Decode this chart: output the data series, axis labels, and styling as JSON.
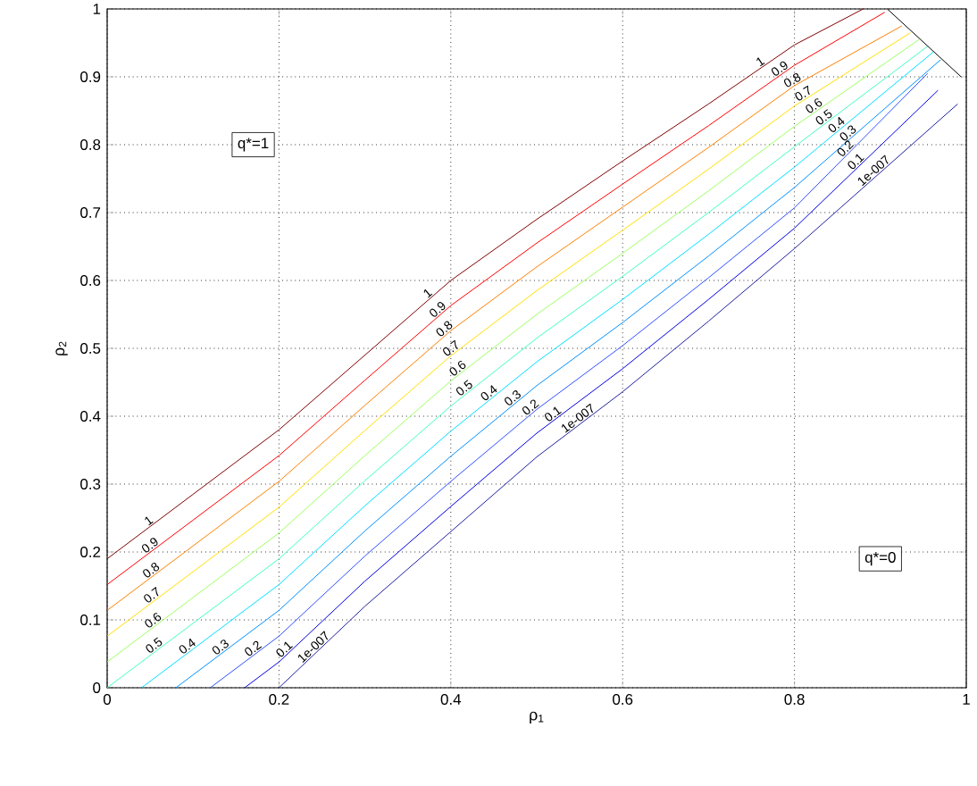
{
  "chart_data": {
    "type": "line",
    "xlabel": "ρ$_{1}$",
    "ylabel": "ρ$_{2}$",
    "xlim": [
      0,
      1
    ],
    "ylim": [
      0,
      1
    ],
    "xticks": [
      0,
      0.2,
      0.4,
      0.6,
      0.8,
      1
    ],
    "yticks": [
      0,
      0.1,
      0.2,
      0.3,
      0.4,
      0.5,
      0.6,
      0.7,
      0.8,
      0.9,
      1
    ],
    "grid": true,
    "marker": "none",
    "line_style": "solid",
    "annotations": [
      {
        "text": "q*=1",
        "x": 0.17,
        "y": 0.8
      },
      {
        "text": "q*=0",
        "x": 0.9,
        "y": 0.19
      }
    ],
    "series": [
      {
        "name": "1",
        "color": "#800000",
        "x": [
          0,
          0.1,
          0.2,
          0.3,
          0.4,
          0.5,
          0.6,
          0.7,
          0.8,
          0.88
        ],
        "values": [
          0.19,
          0.285,
          0.38,
          0.49,
          0.6,
          0.69,
          0.776,
          0.86,
          0.947,
          1.0
        ]
      },
      {
        "name": "0.9",
        "color": "#ff0000",
        "x": [
          0,
          0.1,
          0.2,
          0.3,
          0.4,
          0.5,
          0.6,
          0.7,
          0.8,
          0.905
        ],
        "values": [
          0.152,
          0.247,
          0.342,
          0.453,
          0.563,
          0.655,
          0.742,
          0.828,
          0.917,
          0.995
        ]
      },
      {
        "name": "0.8",
        "color": "#ff7f00",
        "x": [
          0,
          0.1,
          0.2,
          0.3,
          0.4,
          0.5,
          0.6,
          0.7,
          0.8,
          0.925
        ],
        "values": [
          0.114,
          0.209,
          0.304,
          0.416,
          0.526,
          0.62,
          0.708,
          0.796,
          0.887,
          0.975
        ]
      },
      {
        "name": "0.7",
        "color": "#ffdf00",
        "x": [
          0,
          0.1,
          0.2,
          0.3,
          0.4,
          0.5,
          0.6,
          0.7,
          0.8,
          0.935
        ],
        "values": [
          0.076,
          0.171,
          0.266,
          0.379,
          0.489,
          0.585,
          0.674,
          0.764,
          0.857,
          0.965
        ]
      },
      {
        "name": "0.6",
        "color": "#9fff60",
        "x": [
          0,
          0.1,
          0.2,
          0.3,
          0.4,
          0.5,
          0.6,
          0.7,
          0.8,
          0.945
        ],
        "values": [
          0.038,
          0.133,
          0.228,
          0.342,
          0.452,
          0.55,
          0.64,
          0.732,
          0.827,
          0.955
        ]
      },
      {
        "name": "0.5",
        "color": "#40ffbf",
        "x": [
          0,
          0.1,
          0.2,
          0.3,
          0.4,
          0.5,
          0.6,
          0.7,
          0.8,
          0.955
        ],
        "values": [
          0.0,
          0.095,
          0.19,
          0.305,
          0.415,
          0.515,
          0.606,
          0.7,
          0.797,
          0.945
        ]
      },
      {
        "name": "0.4",
        "color": "#00dfff",
        "x": [
          0.04,
          0.1,
          0.2,
          0.3,
          0.4,
          0.5,
          0.6,
          0.7,
          0.8,
          0.962
        ],
        "values": [
          0.0,
          0.057,
          0.152,
          0.268,
          0.378,
          0.48,
          0.572,
          0.668,
          0.767,
          0.937
        ]
      },
      {
        "name": "0.3",
        "color": "#0090ff",
        "x": [
          0.08,
          0.1,
          0.2,
          0.3,
          0.4,
          0.5,
          0.6,
          0.7,
          0.8,
          0.97
        ],
        "values": [
          0.0,
          0.019,
          0.114,
          0.231,
          0.341,
          0.445,
          0.538,
          0.636,
          0.737,
          0.925
        ]
      },
      {
        "name": "0.2",
        "color": "#3050ff",
        "x": [
          0.12,
          0.2,
          0.3,
          0.4,
          0.5,
          0.6,
          0.7,
          0.8,
          0.955
        ],
        "values": [
          0.0,
          0.076,
          0.194,
          0.304,
          0.41,
          0.504,
          0.604,
          0.707,
          0.905
        ]
      },
      {
        "name": "0.1",
        "color": "#0000e0",
        "x": [
          0.16,
          0.2,
          0.3,
          0.4,
          0.5,
          0.6,
          0.7,
          0.8,
          0.967
        ],
        "values": [
          0.0,
          0.038,
          0.157,
          0.267,
          0.375,
          0.47,
          0.572,
          0.677,
          0.88
        ]
      },
      {
        "name": "1e-007",
        "color": "#2020a0",
        "x": [
          0.2,
          0.3,
          0.4,
          0.5,
          0.6,
          0.7,
          0.8,
          0.99
        ],
        "values": [
          0.0,
          0.12,
          0.23,
          0.34,
          0.436,
          0.54,
          0.647,
          0.86
        ]
      },
      {
        "color": "#000000",
        "x": [
          0.908,
          0.994
        ],
        "values": [
          1.0,
          0.9
        ]
      }
    ]
  }
}
